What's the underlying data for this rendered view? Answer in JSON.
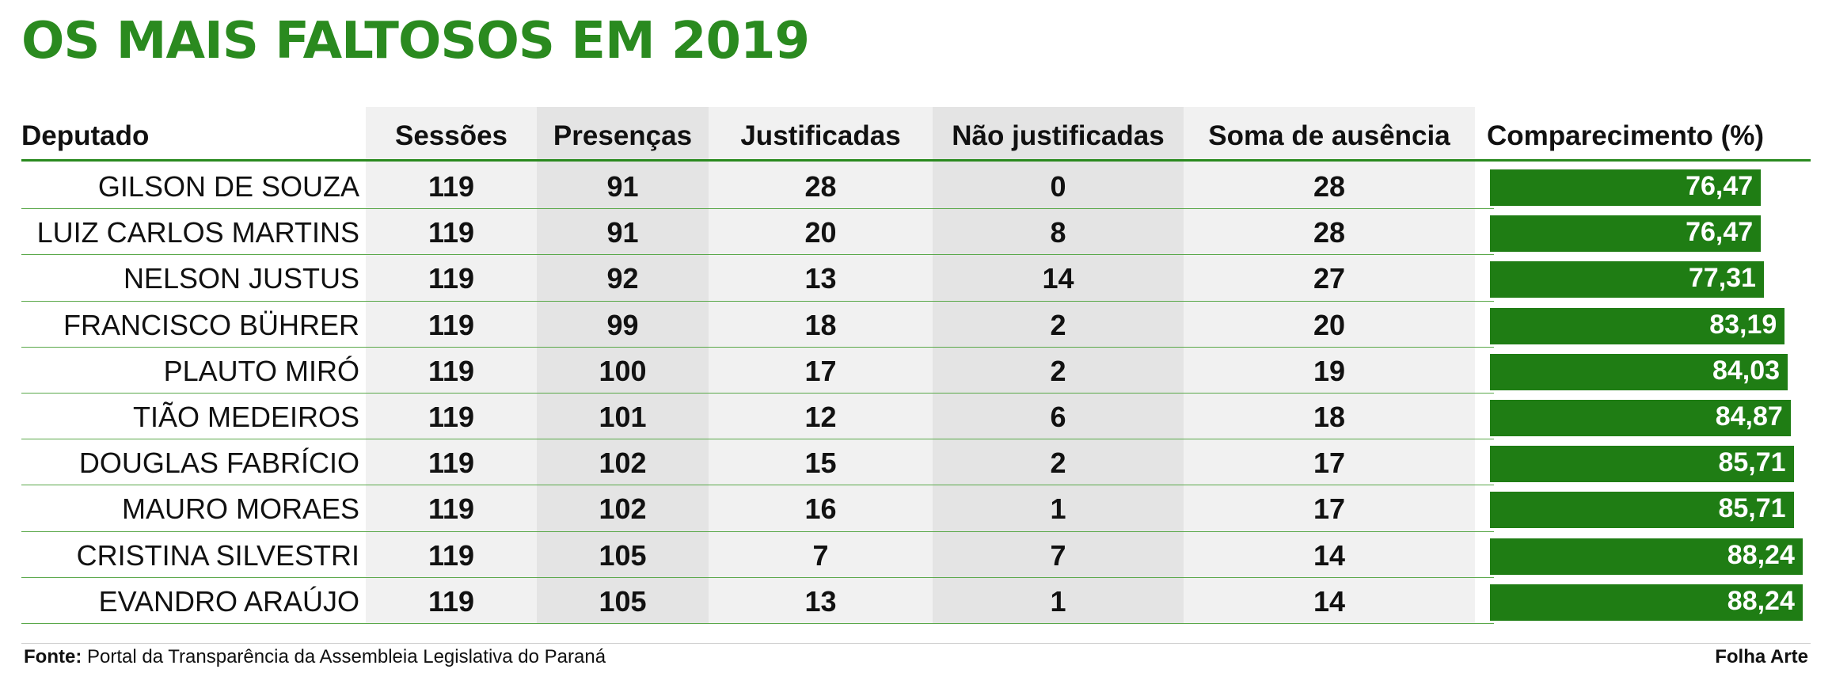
{
  "title": "OS MAIS FALTOSOS EM 2019",
  "colors": {
    "title": "#2a8a1f",
    "bar": "#1f7d14",
    "rule": "#2a8a1f",
    "shade_light": "#f1f1f1",
    "shade_dark": "#e4e4e4"
  },
  "columns": {
    "name": "Deputado",
    "sessions": "Sessões",
    "presences": "Presenças",
    "justified": "Justificadas",
    "unjustified": "Não justificadas",
    "absences": "Soma de ausência",
    "attendance": "Comparecimento (%)"
  },
  "chart_data": {
    "type": "table",
    "title": "OS MAIS FALTOSOS EM 2019",
    "bar_column": "Comparecimento (%)",
    "bar_scale_max": 100,
    "rows": [
      {
        "name": "GILSON DE SOUZA",
        "sessions": "119",
        "presences": "91",
        "justified": "28",
        "unjustified": "0",
        "absences": "28",
        "attendance": "76,47",
        "attendance_value": 76.47
      },
      {
        "name": "LUIZ CARLOS MARTINS",
        "sessions": "119",
        "presences": "91",
        "justified": "20",
        "unjustified": "8",
        "absences": "28",
        "attendance": "76,47",
        "attendance_value": 76.47
      },
      {
        "name": "NELSON JUSTUS",
        "sessions": "119",
        "presences": "92",
        "justified": "13",
        "unjustified": "14",
        "absences": "27",
        "attendance": "77,31",
        "attendance_value": 77.31
      },
      {
        "name": "FRANCISCO BÜHRER",
        "sessions": "119",
        "presences": "99",
        "justified": "18",
        "unjustified": "2",
        "absences": "20",
        "attendance": "83,19",
        "attendance_value": 83.19
      },
      {
        "name": "PLAUTO MIRÓ",
        "sessions": "119",
        "presences": "100",
        "justified": "17",
        "unjustified": "2",
        "absences": "19",
        "attendance": "84,03",
        "attendance_value": 84.03
      },
      {
        "name": "TIÃO MEDEIROS",
        "sessions": "119",
        "presences": "101",
        "justified": "12",
        "unjustified": "6",
        "absences": "18",
        "attendance": "84,87",
        "attendance_value": 84.87
      },
      {
        "name": "DOUGLAS FABRÍCIO",
        "sessions": "119",
        "presences": "102",
        "justified": "15",
        "unjustified": "2",
        "absences": "17",
        "attendance": "85,71",
        "attendance_value": 85.71
      },
      {
        "name": "MAURO MORAES",
        "sessions": "119",
        "presences": "102",
        "justified": "16",
        "unjustified": "1",
        "absences": "17",
        "attendance": "85,71",
        "attendance_value": 85.71
      },
      {
        "name": "CRISTINA SILVESTRI",
        "sessions": "119",
        "presences": "105",
        "justified": "7",
        "unjustified": "7",
        "absences": "14",
        "attendance": "88,24",
        "attendance_value": 88.24
      },
      {
        "name": "EVANDRO ARAÚJO",
        "sessions": "119",
        "presences": "105",
        "justified": "13",
        "unjustified": "1",
        "absences": "14",
        "attendance": "88,24",
        "attendance_value": 88.24
      }
    ]
  },
  "footer": {
    "source_label": "Fonte:",
    "source_text": "Portal da Transparência da Assembleia Legislativa do Paraná",
    "credit": "Folha Arte"
  }
}
